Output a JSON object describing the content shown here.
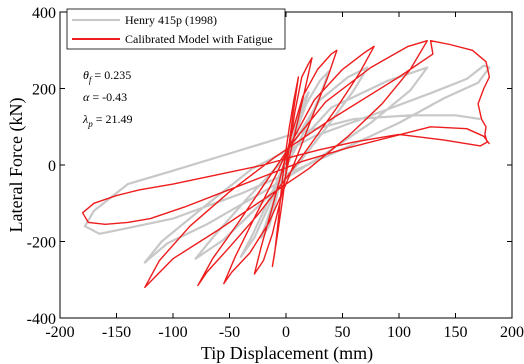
{
  "chart_data": {
    "type": "line",
    "title": "",
    "xlabel": "Tip Displacement (mm)",
    "ylabel": "Lateral Force (kN)",
    "xlim": [
      -200,
      200
    ],
    "ylim": [
      -400,
      400
    ],
    "xticks": [
      -200,
      -150,
      -100,
      -50,
      0,
      50,
      100,
      150,
      200
    ],
    "yticks": [
      -400,
      -200,
      0,
      200,
      400
    ],
    "grid": false,
    "legend_position": "top-left",
    "series": [
      {
        "name": "Henry 415p (1998)",
        "color": "#c8c8c8",
        "points": [
          [
            0,
            0
          ],
          [
            5,
            60
          ],
          [
            10,
            115
          ],
          [
            15,
            165
          ],
          [
            20,
            190
          ],
          [
            12,
            120
          ],
          [
            3,
            40
          ],
          [
            -4,
            -30
          ],
          [
            -10,
            -105
          ],
          [
            -15,
            -160
          ],
          [
            -22,
            -190
          ],
          [
            -14,
            -120
          ],
          [
            -4,
            -35
          ],
          [
            5,
            55
          ],
          [
            18,
            160
          ],
          [
            30,
            220
          ],
          [
            38,
            245
          ],
          [
            30,
            180
          ],
          [
            15,
            80
          ],
          [
            0,
            -5
          ],
          [
            -15,
            -105
          ],
          [
            -28,
            -190
          ],
          [
            -40,
            -240
          ],
          [
            -30,
            -185
          ],
          [
            -12,
            -70
          ],
          [
            5,
            50
          ],
          [
            30,
            170
          ],
          [
            55,
            230
          ],
          [
            72,
            255
          ],
          [
            60,
            195
          ],
          [
            35,
            95
          ],
          [
            10,
            0
          ],
          [
            -20,
            -95
          ],
          [
            -55,
            -195
          ],
          [
            -80,
            -245
          ],
          [
            -65,
            -190
          ],
          [
            -35,
            -90
          ],
          [
            0,
            20
          ],
          [
            40,
            150
          ],
          [
            90,
            220
          ],
          [
            125,
            255
          ],
          [
            110,
            195
          ],
          [
            75,
            110
          ],
          [
            30,
            20
          ],
          [
            -20,
            -70
          ],
          [
            -70,
            -155
          ],
          [
            -105,
            -205
          ],
          [
            -125,
            -255
          ],
          [
            -110,
            -200
          ],
          [
            -75,
            -115
          ],
          [
            -30,
            -10
          ],
          [
            25,
            75
          ],
          [
            85,
            140
          ],
          [
            130,
            190
          ],
          [
            160,
            225
          ],
          [
            175,
            260
          ],
          [
            180,
            255
          ],
          [
            170,
            215
          ],
          [
            140,
            175
          ],
          [
            100,
            110
          ],
          [
            60,
            55
          ],
          [
            15,
            -5
          ],
          [
            -40,
            -75
          ],
          [
            -100,
            -140
          ],
          [
            -140,
            -165
          ],
          [
            -165,
            -180
          ],
          [
            -178,
            -160
          ],
          [
            -170,
            -120
          ],
          [
            -140,
            -50
          ],
          [
            -100,
            -15
          ],
          [
            -50,
            30
          ],
          [
            0,
            75
          ],
          [
            60,
            120
          ],
          [
            110,
            130
          ],
          [
            150,
            130
          ],
          [
            172,
            120
          ]
        ]
      },
      {
        "name": "Calibrated Model with Fatigue",
        "color": "#ee1c1c",
        "points": [
          [
            0,
            0
          ],
          [
            3,
            60
          ],
          [
            6,
            130
          ],
          [
            9,
            190
          ],
          [
            11,
            230
          ],
          [
            7,
            170
          ],
          [
            3,
            100
          ],
          [
            -1,
            20
          ],
          [
            -4,
            -60
          ],
          [
            -7,
            -150
          ],
          [
            -10,
            -230
          ],
          [
            -12,
            -265
          ],
          [
            -8,
            -190
          ],
          [
            -3,
            -90
          ],
          [
            2,
            30
          ],
          [
            8,
            140
          ],
          [
            14,
            230
          ],
          [
            20,
            265
          ],
          [
            23,
            280
          ],
          [
            17,
            200
          ],
          [
            10,
            110
          ],
          [
            3,
            20
          ],
          [
            -4,
            -80
          ],
          [
            -12,
            -180
          ],
          [
            -20,
            -250
          ],
          [
            -28,
            -285
          ],
          [
            -22,
            -215
          ],
          [
            -13,
            -120
          ],
          [
            -4,
            -20
          ],
          [
            5,
            80
          ],
          [
            15,
            180
          ],
          [
            28,
            250
          ],
          [
            40,
            290
          ],
          [
            45,
            300
          ],
          [
            37,
            230
          ],
          [
            25,
            140
          ],
          [
            12,
            40
          ],
          [
            0,
            -50
          ],
          [
            -15,
            -150
          ],
          [
            -32,
            -230
          ],
          [
            -48,
            -280
          ],
          [
            -55,
            -310
          ],
          [
            -45,
            -240
          ],
          [
            -30,
            -150
          ],
          [
            -12,
            -45
          ],
          [
            5,
            60
          ],
          [
            25,
            170
          ],
          [
            50,
            250
          ],
          [
            70,
            295
          ],
          [
            78,
            310
          ],
          [
            65,
            240
          ],
          [
            45,
            150
          ],
          [
            22,
            55
          ],
          [
            0,
            -35
          ],
          [
            -25,
            -130
          ],
          [
            -50,
            -215
          ],
          [
            -70,
            -280
          ],
          [
            -78,
            -315
          ],
          [
            -65,
            -245
          ],
          [
            -42,
            -150
          ],
          [
            -18,
            -45
          ],
          [
            5,
            55
          ],
          [
            35,
            165
          ],
          [
            75,
            255
          ],
          [
            108,
            310
          ],
          [
            125,
            325
          ],
          [
            110,
            250
          ],
          [
            85,
            160
          ],
          [
            55,
            75
          ],
          [
            20,
            -10
          ],
          [
            -20,
            -90
          ],
          [
            -60,
            -170
          ],
          [
            -100,
            -245
          ],
          [
            -125,
            -320
          ],
          [
            -112,
            -250
          ],
          [
            -85,
            -160
          ],
          [
            -50,
            -70
          ],
          [
            -10,
            20
          ],
          [
            40,
            120
          ],
          [
            100,
            230
          ],
          [
            130,
            290
          ],
          [
            128,
            325
          ],
          [
            145,
            315
          ],
          [
            165,
            300
          ],
          [
            177,
            270
          ],
          [
            180,
            230
          ],
          [
            175,
            200
          ],
          [
            170,
            160
          ],
          [
            173,
            120
          ],
          [
            177,
            100
          ],
          [
            176,
            80
          ],
          [
            178,
            60
          ],
          [
            172,
            50
          ],
          [
            140,
            65
          ],
          [
            100,
            80
          ],
          [
            60,
            60
          ],
          [
            30,
            40
          ],
          [
            10,
            25
          ],
          [
            -20,
            0
          ],
          [
            -60,
            -25
          ],
          [
            -100,
            -50
          ],
          [
            -130,
            -65
          ],
          [
            -150,
            -80
          ],
          [
            -170,
            -100
          ],
          [
            -180,
            -125
          ],
          [
            -175,
            -150
          ],
          [
            -160,
            -155
          ],
          [
            -140,
            -150
          ],
          [
            -120,
            -140
          ],
          [
            -90,
            -110
          ],
          [
            -55,
            -70
          ],
          [
            -20,
            -30
          ],
          [
            15,
            10
          ],
          [
            55,
            45
          ],
          [
            95,
            75
          ],
          [
            128,
            100
          ],
          [
            160,
            95
          ],
          [
            175,
            75
          ],
          [
            180,
            55
          ]
        ]
      }
    ],
    "annotations": [
      {
        "symbol": "θ",
        "subscript": "f",
        "value": " = 0.235"
      },
      {
        "symbol": "α",
        "subscript": "",
        "value": " = -0.43"
      },
      {
        "symbol": "λ",
        "subscript": "p",
        "value": " = 21.49"
      }
    ]
  }
}
